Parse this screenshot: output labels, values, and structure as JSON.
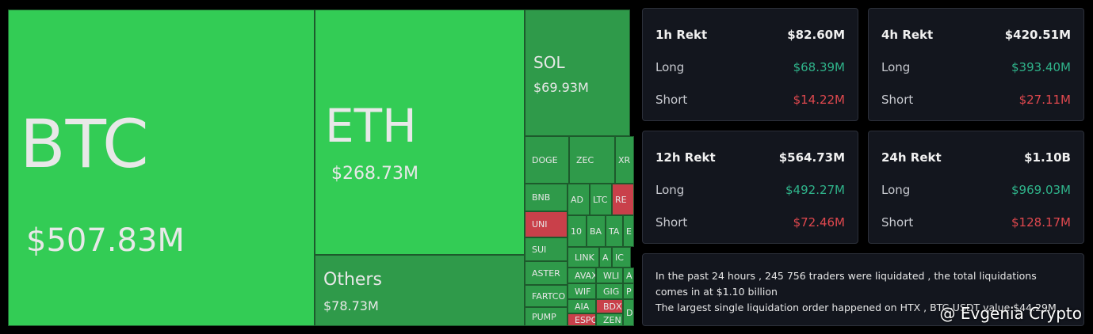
{
  "treemap": {
    "tiles": [
      {
        "label": "BTC",
        "value": "$507.83M"
      },
      {
        "label": "ETH",
        "value": "$268.73M"
      },
      {
        "label": "Others",
        "value": "$78.73M"
      },
      {
        "label": "SOL",
        "value": "$69.93M"
      }
    ],
    "small_tiles": [
      "DOGE",
      "ZEC",
      "XR",
      "BNB",
      "UNI",
      "SUI",
      "ASTER",
      "FARTCO",
      "PUMP",
      "AD",
      "LTC",
      "RE",
      "10",
      "BA",
      "TA",
      "E",
      "LINK",
      "A",
      "IC",
      "AVAX",
      "WLI",
      "A",
      "WIF",
      "GIG",
      "P",
      "AIA",
      "BDX",
      "ESPO",
      "ZEN",
      "D"
    ]
  },
  "cards": [
    {
      "title": "1h Rekt",
      "total": "$82.60M",
      "rows": [
        {
          "label": "Long",
          "value": "$68.39M"
        },
        {
          "label": "Short",
          "value": "$14.22M"
        }
      ]
    },
    {
      "title": "4h Rekt",
      "total": "$420.51M",
      "rows": [
        {
          "label": "Long",
          "value": "$393.40M"
        },
        {
          "label": "Short",
          "value": "$27.11M"
        }
      ]
    },
    {
      "title": "12h Rekt",
      "total": "$564.73M",
      "rows": [
        {
          "label": "Long",
          "value": "$492.27M"
        },
        {
          "label": "Short",
          "value": "$72.46M"
        }
      ]
    },
    {
      "title": "24h Rekt",
      "total": "$1.10B",
      "rows": [
        {
          "label": "Long",
          "value": "$969.03M"
        },
        {
          "label": "Short",
          "value": "$128.17M"
        }
      ]
    }
  ],
  "summary": [
    "In the past 24 hours , 245 756 traders were liquidated , the total liquidations comes in at $1.10 billion",
    "The largest single liquidation order happened on HTX , BTC-USDT value $44.29M"
  ],
  "watermark": "@ Evgenia Crypto"
}
